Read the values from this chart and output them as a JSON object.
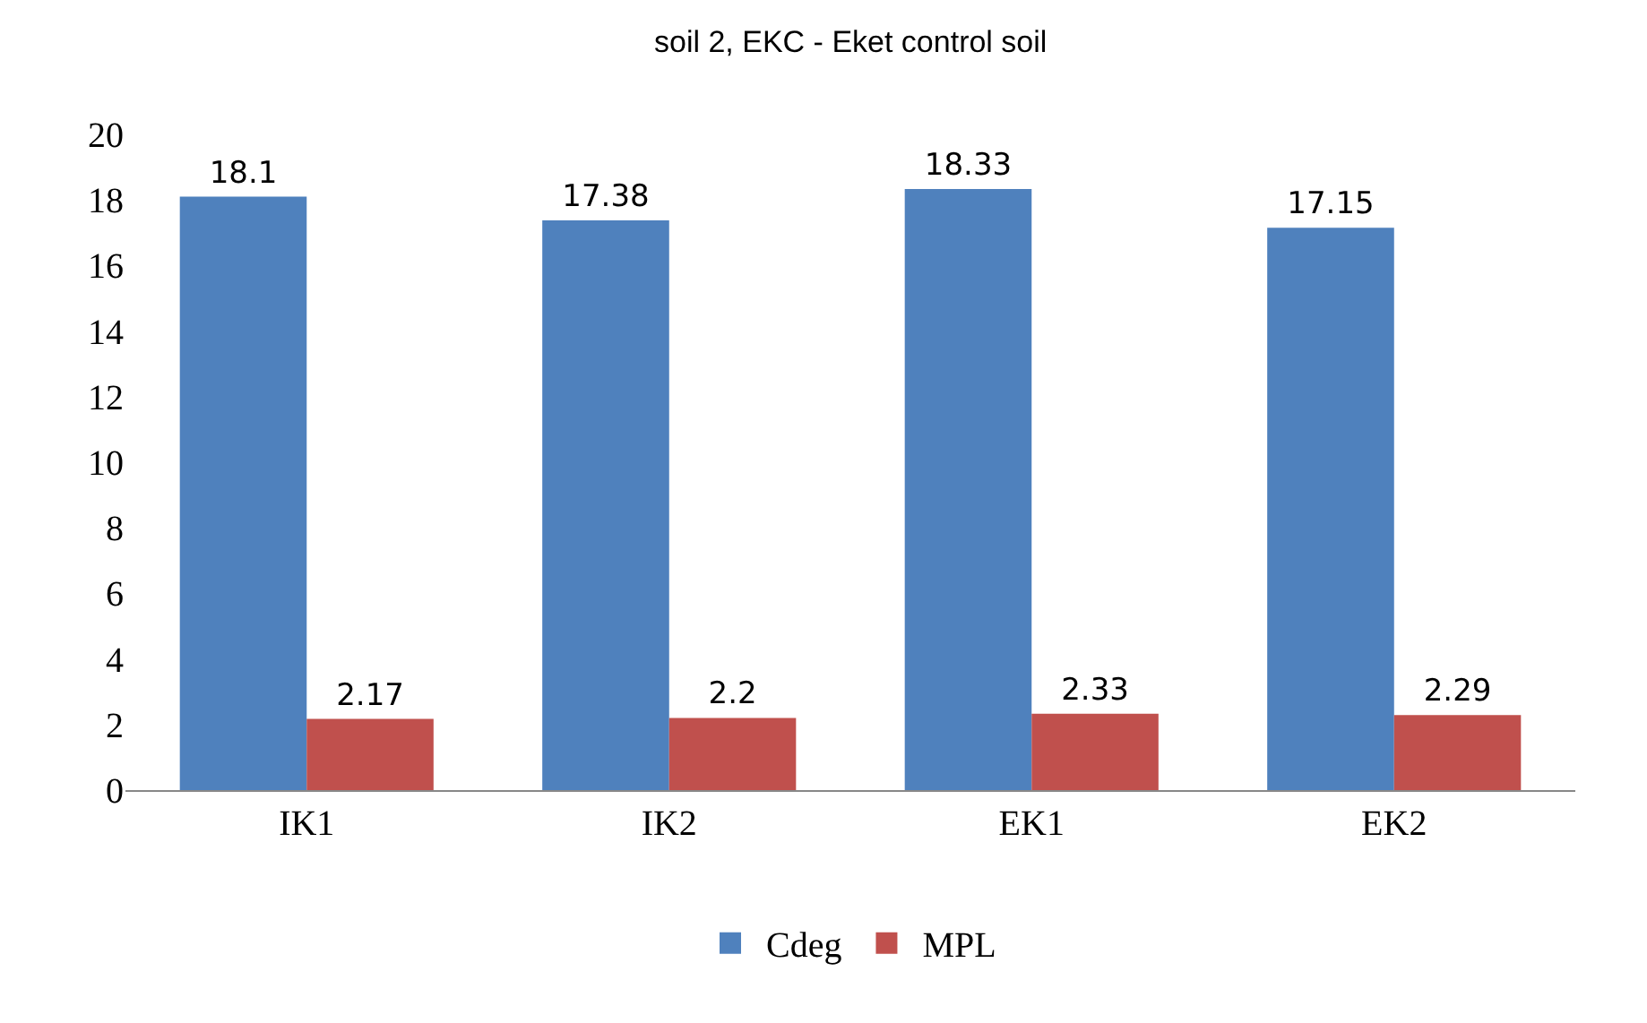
{
  "chart_data": {
    "type": "bar",
    "categories": [
      "IK1",
      "IK2",
      "EK1",
      "EK2"
    ],
    "series": [
      {
        "name": "Cdeg",
        "color": "#4f81bd",
        "values": [
          18.1,
          17.38,
          18.33,
          17.15
        ]
      },
      {
        "name": "MPL",
        "color": "#c0504d",
        "values": [
          2.17,
          2.2,
          2.33,
          2.29
        ]
      }
    ],
    "ylim": [
      0,
      20
    ],
    "yticks": [
      0,
      2,
      4,
      6,
      8,
      10,
      12,
      14,
      16,
      18,
      20
    ],
    "legend": "bottom",
    "data_labels": true,
    "annotations": [
      "soil 2, EKC - Eket control soil"
    ]
  }
}
